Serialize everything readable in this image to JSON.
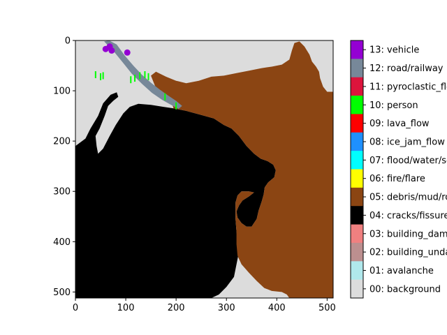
{
  "chart_data": {
    "type": "heatmap",
    "subtype": "segmentation-mask",
    "title": "",
    "xlabel": "",
    "ylabel": "",
    "xlim": [
      0,
      512
    ],
    "ylim": [
      512,
      0
    ],
    "x_ticks": [
      0,
      100,
      200,
      300,
      400,
      500
    ],
    "y_ticks": [
      0,
      100,
      200,
      300,
      400,
      500
    ],
    "grid": false,
    "legend_position": "right",
    "colorbar": [
      {
        "label": "00: background",
        "color": "#dcdcdc"
      },
      {
        "label": "01: avalanche",
        "color": "#b0e8ec"
      },
      {
        "label": "02: building_undamaged",
        "color": "#bc8f8f"
      },
      {
        "label": "03: building_damaged",
        "color": "#f08080"
      },
      {
        "label": "04: cracks/fissure",
        "color": "#000000"
      },
      {
        "label": "05: debris/mud/rock",
        "color": "#8b4513"
      },
      {
        "label": "06: fire/flare",
        "color": "#ffff00"
      },
      {
        "label": "07: flood/water/sea",
        "color": "#00ffff"
      },
      {
        "label": "08: ice_jam_flow",
        "color": "#1e90ff"
      },
      {
        "label": "09: lava_flow",
        "color": "#ff0000"
      },
      {
        "label": "10: person",
        "color": "#00ff00"
      },
      {
        "label": "11: pyroclastic_flow",
        "color": "#dc143c"
      },
      {
        "label": "12: road/railway",
        "color": "#778899"
      },
      {
        "label": "13: vehicle",
        "color": "#9400d3"
      }
    ],
    "regions": [
      {
        "class": "04: cracks/fissure",
        "polygon": [
          [
            0,
            512
          ],
          [
            0,
            210
          ],
          [
            20,
            195
          ],
          [
            30,
            175
          ],
          [
            45,
            150
          ],
          [
            55,
            125
          ],
          [
            70,
            108
          ],
          [
            82,
            103
          ],
          [
            85,
            112
          ],
          [
            75,
            120
          ],
          [
            65,
            130
          ],
          [
            58,
            150
          ],
          [
            48,
            175
          ],
          [
            40,
            190
          ],
          [
            42,
            210
          ],
          [
            45,
            225
          ],
          [
            55,
            215
          ],
          [
            68,
            190
          ],
          [
            80,
            168
          ],
          [
            95,
            145
          ],
          [
            108,
            132
          ],
          [
            125,
            126
          ],
          [
            150,
            128
          ],
          [
            175,
            132
          ],
          [
            195,
            135
          ],
          [
            220,
            140
          ],
          [
            250,
            148
          ],
          [
            275,
            155
          ],
          [
            295,
            168
          ],
          [
            310,
            175
          ],
          [
            325,
            190
          ],
          [
            340,
            210
          ],
          [
            355,
            225
          ],
          [
            368,
            235
          ],
          [
            382,
            240
          ],
          [
            393,
            247
          ],
          [
            398,
            258
          ],
          [
            395,
            272
          ],
          [
            383,
            282
          ],
          [
            376,
            292
          ],
          [
            374,
            306
          ],
          [
            370,
            320
          ],
          [
            364,
            338
          ],
          [
            360,
            355
          ],
          [
            350,
            370
          ],
          [
            340,
            370
          ],
          [
            330,
            363
          ],
          [
            322,
            352
          ],
          [
            320,
            340
          ],
          [
            325,
            328
          ],
          [
            332,
            318
          ],
          [
            345,
            310
          ],
          [
            355,
            302
          ],
          [
            345,
            300
          ],
          [
            330,
            300
          ],
          [
            322,
            308
          ],
          [
            318,
            322
          ],
          [
            318,
            355
          ],
          [
            320,
            380
          ],
          [
            322,
            400
          ],
          [
            325,
            420
          ],
          [
            320,
            445
          ],
          [
            315,
            470
          ],
          [
            300,
            490
          ],
          [
            285,
            505
          ],
          [
            270,
            512
          ]
        ]
      },
      {
        "class": "05: debris/mud/rock",
        "polygon": [
          [
            150,
            70
          ],
          [
            160,
            62
          ],
          [
            180,
            72
          ],
          [
            200,
            80
          ],
          [
            220,
            85
          ],
          [
            245,
            80
          ],
          [
            270,
            72
          ],
          [
            295,
            70
          ],
          [
            320,
            65
          ],
          [
            345,
            60
          ],
          [
            370,
            55
          ],
          [
            390,
            52
          ],
          [
            410,
            48
          ],
          [
            425,
            38
          ],
          [
            430,
            20
          ],
          [
            435,
            5
          ],
          [
            445,
            2
          ],
          [
            455,
            12
          ],
          [
            465,
            28
          ],
          [
            470,
            42
          ],
          [
            478,
            52
          ],
          [
            484,
            62
          ],
          [
            486,
            75
          ],
          [
            492,
            92
          ],
          [
            500,
            102
          ],
          [
            512,
            102
          ],
          [
            512,
            512
          ],
          [
            425,
            512
          ],
          [
            420,
            505
          ],
          [
            410,
            500
          ],
          [
            390,
            498
          ],
          [
            375,
            492
          ],
          [
            360,
            478
          ],
          [
            345,
            462
          ],
          [
            330,
            445
          ],
          [
            322,
            428
          ],
          [
            320,
            405
          ],
          [
            320,
            380
          ],
          [
            318,
            355
          ],
          [
            318,
            322
          ],
          [
            322,
            308
          ],
          [
            330,
            300
          ],
          [
            345,
            300
          ],
          [
            355,
            302
          ],
          [
            345,
            310
          ],
          [
            332,
            318
          ],
          [
            325,
            328
          ],
          [
            320,
            340
          ],
          [
            322,
            352
          ],
          [
            330,
            363
          ],
          [
            340,
            370
          ],
          [
            350,
            370
          ],
          [
            360,
            355
          ],
          [
            364,
            338
          ],
          [
            370,
            320
          ],
          [
            374,
            306
          ],
          [
            376,
            292
          ],
          [
            383,
            282
          ],
          [
            395,
            272
          ],
          [
            398,
            258
          ],
          [
            393,
            247
          ],
          [
            382,
            240
          ],
          [
            368,
            235
          ],
          [
            355,
            225
          ],
          [
            340,
            210
          ],
          [
            325,
            190
          ],
          [
            310,
            175
          ],
          [
            295,
            168
          ],
          [
            275,
            155
          ],
          [
            250,
            148
          ],
          [
            220,
            140
          ],
          [
            195,
            135
          ],
          [
            190,
            120
          ],
          [
            175,
            108
          ],
          [
            160,
            95
          ]
        ]
      },
      {
        "class": "12: road/railway",
        "polygon": [
          [
            57,
            2
          ],
          [
            67,
            0
          ],
          [
            82,
            8
          ],
          [
            98,
            30
          ],
          [
            115,
            50
          ],
          [
            132,
            68
          ],
          [
            150,
            84
          ],
          [
            168,
            98
          ],
          [
            185,
            110
          ],
          [
            200,
            120
          ],
          [
            212,
            130
          ],
          [
            205,
            136
          ],
          [
            190,
            128
          ],
          [
            172,
            118
          ],
          [
            152,
            104
          ],
          [
            132,
            86
          ],
          [
            112,
            66
          ],
          [
            95,
            45
          ],
          [
            78,
            24
          ],
          [
            65,
            10
          ]
        ]
      }
    ],
    "markers": [
      {
        "class": "13: vehicle",
        "x": 60,
        "y": 17
      },
      {
        "class": "13: vehicle",
        "x": 68,
        "y": 12
      },
      {
        "class": "13: vehicle",
        "x": 72,
        "y": 20
      },
      {
        "class": "13: vehicle",
        "x": 103,
        "y": 24
      },
      {
        "class": "10: person",
        "x": 40,
        "y": 68
      },
      {
        "class": "10: person",
        "x": 50,
        "y": 72
      },
      {
        "class": "10: person",
        "x": 55,
        "y": 70
      },
      {
        "class": "10: person",
        "x": 110,
        "y": 78
      },
      {
        "class": "10: person",
        "x": 118,
        "y": 75
      },
      {
        "class": "10: person",
        "x": 128,
        "y": 70
      },
      {
        "class": "10: person",
        "x": 138,
        "y": 68
      },
      {
        "class": "10: person",
        "x": 145,
        "y": 72
      },
      {
        "class": "10: person",
        "x": 178,
        "y": 112
      },
      {
        "class": "10: person",
        "x": 200,
        "y": 130
      }
    ]
  }
}
